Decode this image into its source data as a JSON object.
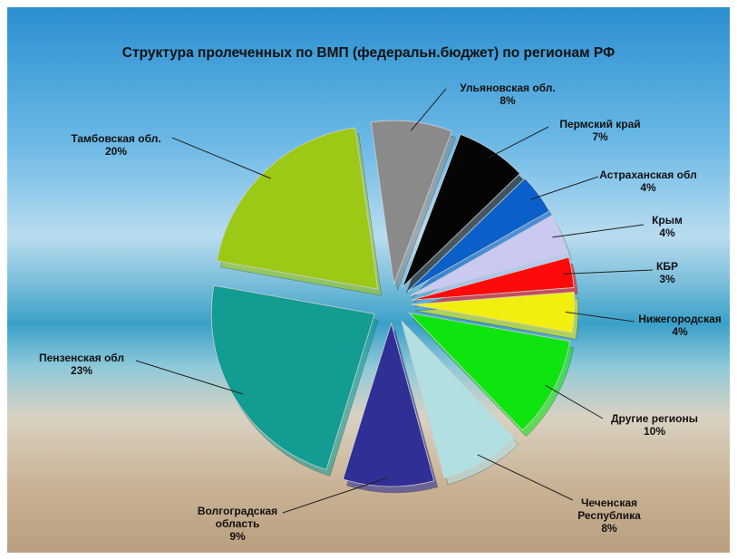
{
  "chart_data": {
    "type": "pie",
    "title": "Структура пролеченных по ВМП (федеральн.бюджет) по регионам РФ",
    "categories": [
      "Ульяновская обл.",
      "Пермский край",
      "Астраханская обл",
      "Крым",
      "КБР",
      "Нижегородская",
      "Другие регионы",
      "Чеченская Республика",
      "Волгоградская область",
      "Пензенская обл",
      "Тамбовская обл."
    ],
    "values": [
      8,
      7,
      4,
      4,
      3,
      4,
      10,
      8,
      9,
      23,
      20
    ],
    "value_labels": [
      "8%",
      "7%",
      "4%",
      "4%",
      "3%",
      "4%",
      "10%",
      "8%",
      "9%",
      "23%",
      "20%"
    ],
    "colors": [
      "#8a8a8a",
      "#050505",
      "#0a5fc8",
      "#c9c9f2",
      "#ff0a0a",
      "#f2ee10",
      "#0ee40e",
      "#b2dfe2",
      "#2f2f96",
      "#129c92",
      "#9cc816"
    ]
  }
}
